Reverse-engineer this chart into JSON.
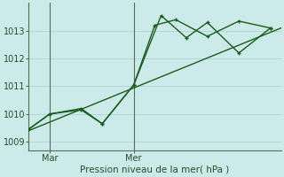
{
  "background_color": "#cdeaea",
  "grid_color": "#aed4d4",
  "line_color": "#1a5c1a",
  "ylabel_color": "#2a4a2a",
  "title": "Pression niveau de la mer( hPa )",
  "ylim": [
    1008.7,
    1014.0
  ],
  "yticks": [
    1009,
    1010,
    1011,
    1012,
    1013
  ],
  "xlim": [
    0,
    12
  ],
  "vline_x": [
    1,
    5
  ],
  "xtick_positions": [
    1,
    5
  ],
  "xticklabels": [
    "Mar",
    "Mer"
  ],
  "trend_x": [
    0,
    12
  ],
  "trend_y": [
    1009.4,
    1013.1
  ],
  "line1_x": [
    0,
    1,
    2.5,
    3.5,
    5,
    6,
    7,
    8.5,
    10,
    11.5
  ],
  "line1_y": [
    1009.45,
    1010.0,
    1010.2,
    1009.65,
    1011.05,
    1013.2,
    1013.4,
    1012.8,
    1013.35,
    1013.1
  ],
  "line2_x": [
    0,
    1,
    2.5,
    3.5,
    5,
    6.3,
    7.5,
    8.5,
    10,
    11.5
  ],
  "line2_y": [
    1009.45,
    1010.0,
    1010.15,
    1009.65,
    1011.05,
    1013.55,
    1012.75,
    1013.3,
    1012.2,
    1013.1
  ],
  "marker_size": 3.5,
  "line_width": 1.0
}
